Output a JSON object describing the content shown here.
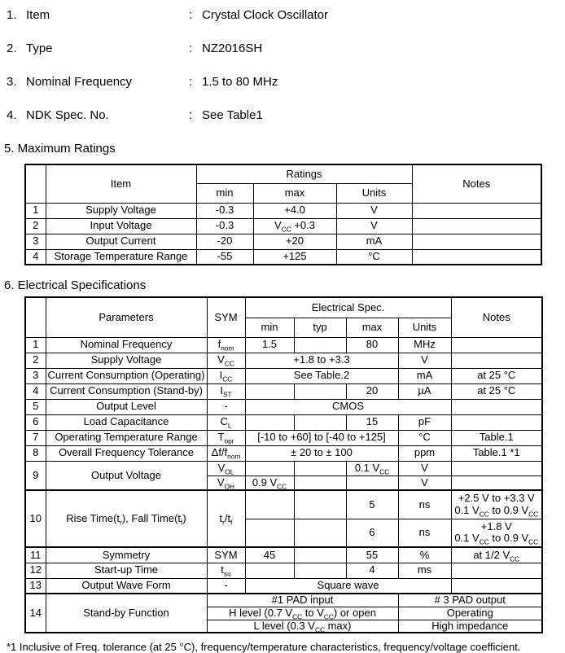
{
  "top_items": [
    {
      "no": "1.",
      "label": "Item",
      "colon": ":",
      "value": "Crystal Clock Oscillator"
    },
    {
      "no": "2.",
      "label": "Type",
      "colon": ":",
      "value": "NZ2016SH"
    },
    {
      "no": "3.",
      "label": "Nominal Frequency",
      "colon": ":",
      "value": "1.5 to 80 MHz"
    },
    {
      "no": "4.",
      "label": "NDK Spec. No.",
      "colon": ":",
      "value": "See Table1"
    }
  ],
  "max_ratings": {
    "heading": "5. Maximum Ratings",
    "headers": {
      "item": "Item",
      "ratings": "Ratings",
      "min": "min",
      "max": "max",
      "units": "Units",
      "notes": "Notes"
    },
    "rows": [
      {
        "no": "1",
        "item": "Supply Voltage",
        "min": "-0.3",
        "max": "+4.0",
        "units": "V",
        "notes": ""
      },
      {
        "no": "2",
        "item": "Input Voltage",
        "min": "-0.3",
        "max": "V~CC~ +0.3",
        "units": "V",
        "notes": ""
      },
      {
        "no": "3",
        "item": "Output Current",
        "min": "-20",
        "max": "+20",
        "units": "mA",
        "notes": ""
      },
      {
        "no": "4",
        "item": "Storage Temperature Range",
        "min": "-55",
        "max": "+125",
        "units": "°C",
        "notes": ""
      }
    ]
  },
  "elec_spec": {
    "heading": "6. Electrical Specifications",
    "headers": {
      "parameters": "Parameters",
      "sym": "SYM",
      "group": "Electrical Spec.",
      "min": "min",
      "typ": "typ",
      "max": "max",
      "units": "Units",
      "notes": "Notes"
    },
    "rows": {
      "r1": {
        "no": "1",
        "param": "Nominal Frequency",
        "sym": "f~nom~",
        "min": "1.5",
        "typ": "",
        "max": "80",
        "units": "MHz",
        "notes": ""
      },
      "r2": {
        "no": "2",
        "param": "Supply Voltage",
        "sym": "V~CC~",
        "value": "+1.8 to +3.3",
        "units": "V",
        "notes": ""
      },
      "r3": {
        "no": "3",
        "param": "Current Consumption (Operating)",
        "sym": "I~CC~",
        "value": "See Table.2",
        "units": "mA",
        "notes": "at 25 °C"
      },
      "r4": {
        "no": "4",
        "param": "Current Consumption (Stand-by)",
        "sym": "I~ST~",
        "min": "",
        "typ": "",
        "max": "20",
        "units": "µA",
        "notes": "at 25 °C"
      },
      "r5": {
        "no": "5",
        "param": "Output Level",
        "sym": "-",
        "value": "CMOS",
        "notes": ""
      },
      "r6": {
        "no": "6",
        "param": "Load Capacitance",
        "sym": "C~L~",
        "min": "",
        "typ": "",
        "max": "15",
        "units": "pF",
        "notes": ""
      },
      "r7": {
        "no": "7",
        "param": "Operating Temperature Range",
        "sym": "T~opr~",
        "value": "[-10 to +60] to [-40 to +125]",
        "units": "°C",
        "notes": "Table.1"
      },
      "r8": {
        "no": "8",
        "param": "Overall Frequency Tolerance",
        "sym": "Δf/f~nom~",
        "value": "± 20 to ± 100",
        "units": "ppm",
        "notes": "Table.1  *1"
      },
      "r9": {
        "no": "9",
        "param": "Output Voltage",
        "low": {
          "sym": "V~OL~",
          "min": "",
          "typ": "",
          "max": "0.1 V~CC~",
          "units": "V",
          "notes": ""
        },
        "high": {
          "sym": "V~OH~",
          "min": "0.9 V~CC~",
          "typ": "",
          "max": "",
          "units": "V",
          "notes": ""
        }
      },
      "r10": {
        "no": "10",
        "param": "Rise Time(t~r~), Fall Time(t~f~)",
        "sym": "t~r~/t~f~",
        "a": {
          "min": "",
          "typ": "",
          "max": "5",
          "units": "ns",
          "notes1": "+2.5 V to +3.3 V",
          "notes2": "0.1 V~CC~ to 0.9 V~CC~"
        },
        "b": {
          "min": "",
          "typ": "",
          "max": "6",
          "units": "ns",
          "notes1": "+1.8 V",
          "notes2": "0.1 V~CC~ to 0.9 V~CC~"
        }
      },
      "r11": {
        "no": "11",
        "param": "Symmetry",
        "sym": "SYM",
        "min": "45",
        "typ": "",
        "max": "55",
        "units": "%",
        "notes": "at 1/2 V~CC~"
      },
      "r12": {
        "no": "12",
        "param": "Start-up Time",
        "sym": "t~su~",
        "min": "",
        "typ": "",
        "max": "4",
        "units": "ms",
        "notes": ""
      },
      "r13": {
        "no": "13",
        "param": "Output Wave Form",
        "sym": "-",
        "value": "Square wave",
        "notes": ""
      },
      "r14": {
        "no": "14",
        "param": "Stand-by Function",
        "col_left": [
          "#1 PAD input",
          "H level (0.7 V~CC~ to V~CC~) or open",
          "L level (0.3 V~CC~ max)"
        ],
        "col_right": [
          "# 3 PAD output",
          "Operating",
          "High impedance"
        ]
      }
    }
  },
  "footnote": "*1 Inclusive of Freq. tolerance (at 25 °C), frequency/temperature characteristics, frequency/voltage coefficient."
}
